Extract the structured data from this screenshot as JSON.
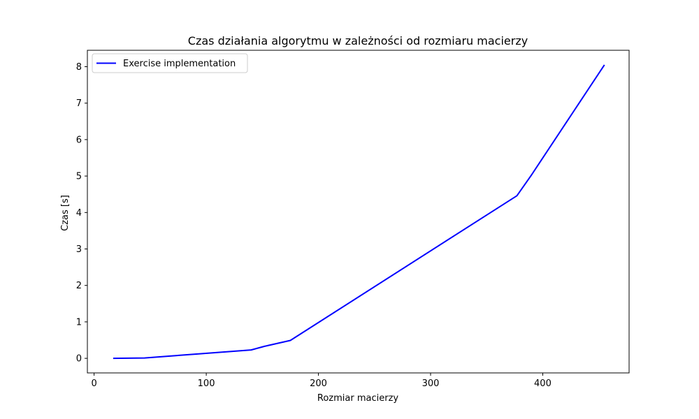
{
  "chart_data": {
    "type": "line",
    "title": "Czas działania algorytmu w zależności od rozmiaru macierzy",
    "xlabel": "Rozmiar macierzy",
    "ylabel": "Czas [s]",
    "xlim": [
      -6,
      477
    ],
    "ylim": [
      -0.4,
      8.45
    ],
    "xticks": [
      0,
      100,
      200,
      300,
      400
    ],
    "yticks": [
      0,
      1,
      2,
      3,
      4,
      5,
      6,
      7,
      8
    ],
    "grid": false,
    "legend_position": "top-left",
    "series": [
      {
        "name": "Exercise implementation",
        "color": "#0000ff",
        "x": [
          17,
          45,
          140,
          152,
          175,
          377,
          390,
          455
        ],
        "y": [
          0.0,
          0.01,
          0.23,
          0.33,
          0.49,
          4.46,
          5.03,
          8.05
        ]
      }
    ]
  }
}
